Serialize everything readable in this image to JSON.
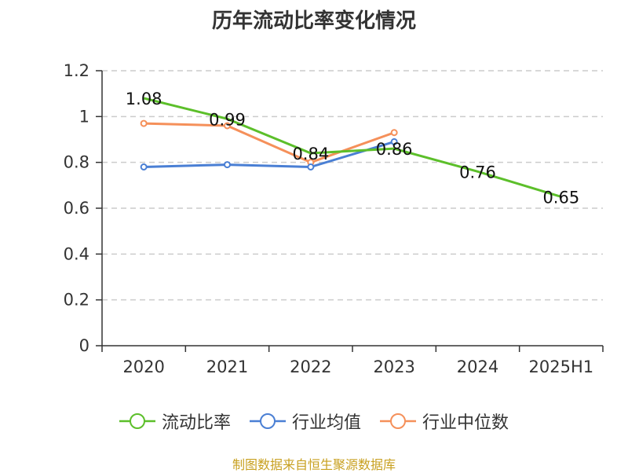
{
  "chart_data": {
    "type": "line",
    "title": "历年流动比率变化情况",
    "categories": [
      "2020",
      "2021",
      "2022",
      "2023",
      "2024",
      "2025H1"
    ],
    "ylim": [
      0,
      1.2
    ],
    "yticks": [
      "0",
      "0.2",
      "0.4",
      "0.6",
      "0.8",
      "1",
      "1.2"
    ],
    "grid": true,
    "legend_placement": "bottom",
    "series": [
      {
        "name": "流动比率",
        "color": "#5cbf2a",
        "values": [
          1.08,
          0.99,
          0.84,
          0.86,
          0.76,
          0.65
        ],
        "labels": [
          "1.08",
          "0.99",
          "0.84",
          "0.86",
          "0.76",
          "0.65"
        ]
      },
      {
        "name": "行业均值",
        "color": "#4a7fd4",
        "values": [
          0.78,
          0.79,
          0.78,
          0.89,
          null,
          null
        ]
      },
      {
        "name": "行业中位数",
        "color": "#f5905a",
        "values": [
          0.97,
          0.96,
          0.8,
          0.93,
          null,
          null
        ]
      }
    ]
  },
  "source_note": "制图数据来自恒生聚源数据库"
}
